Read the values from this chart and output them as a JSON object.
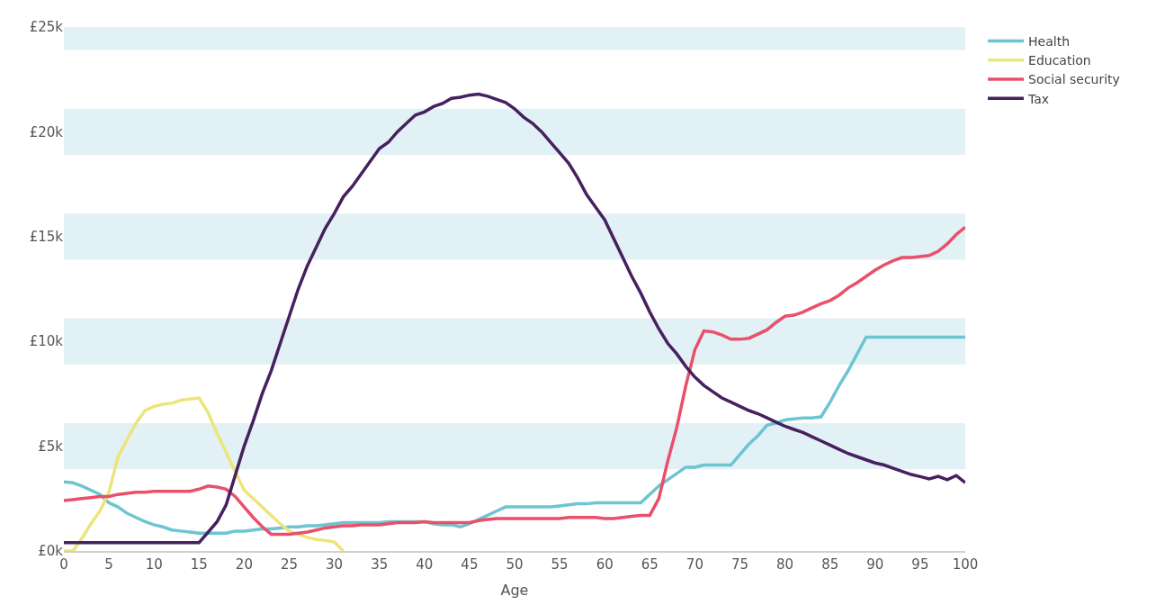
{
  "chart_data": {
    "type": "line",
    "xlabel": "Age",
    "x": [
      0,
      1,
      2,
      3,
      4,
      5,
      6,
      7,
      8,
      9,
      10,
      11,
      12,
      13,
      14,
      15,
      16,
      17,
      18,
      19,
      20,
      21,
      22,
      23,
      24,
      25,
      26,
      27,
      28,
      29,
      30,
      31,
      32,
      33,
      34,
      35,
      36,
      37,
      38,
      39,
      40,
      41,
      42,
      43,
      44,
      45,
      46,
      47,
      48,
      49,
      50,
      51,
      52,
      53,
      54,
      55,
      56,
      57,
      58,
      59,
      60,
      61,
      62,
      63,
      64,
      65,
      66,
      67,
      68,
      69,
      70,
      71,
      72,
      73,
      74,
      75,
      76,
      77,
      78,
      79,
      80,
      81,
      82,
      83,
      84,
      85,
      86,
      87,
      88,
      89,
      90,
      91,
      92,
      93,
      94,
      95,
      96,
      97,
      98,
      99,
      100
    ],
    "series": [
      {
        "name": "Health",
        "color": "#6cc5d1",
        "values": [
          3.3,
          3.25,
          3.1,
          2.9,
          2.7,
          2.3,
          2.1,
          1.8,
          1.6,
          1.4,
          1.25,
          1.15,
          1.0,
          0.95,
          0.9,
          0.85,
          0.85,
          0.85,
          0.85,
          0.95,
          0.95,
          1.0,
          1.05,
          1.05,
          1.1,
          1.15,
          1.15,
          1.2,
          1.2,
          1.25,
          1.3,
          1.35,
          1.35,
          1.35,
          1.35,
          1.35,
          1.4,
          1.4,
          1.4,
          1.4,
          1.4,
          1.3,
          1.25,
          1.25,
          1.15,
          1.3,
          1.5,
          1.7,
          1.9,
          2.1,
          2.1,
          2.1,
          2.1,
          2.1,
          2.1,
          2.15,
          2.2,
          2.25,
          2.25,
          2.3,
          2.3,
          2.3,
          2.3,
          2.3,
          2.3,
          2.7,
          3.1,
          3.4,
          3.7,
          4.0,
          4.0,
          4.1,
          4.1,
          4.1,
          4.1,
          4.6,
          5.1,
          5.5,
          6.0,
          6.1,
          6.25,
          6.3,
          6.35,
          6.35,
          6.4,
          7.1,
          7.9,
          8.6,
          9.4,
          10.2,
          10.2,
          10.2,
          10.2,
          10.2,
          10.2,
          10.2,
          10.2,
          10.2,
          10.2,
          10.2,
          10.2
        ]
      },
      {
        "name": "Education",
        "color": "#ede57a",
        "values": [
          0,
          0,
          0.6,
          1.3,
          1.9,
          2.8,
          4.5,
          5.3,
          6.1,
          6.7,
          6.9,
          7.0,
          7.05,
          7.2,
          7.25,
          7.3,
          6.6,
          5.6,
          4.7,
          3.8,
          2.9,
          2.5,
          2.1,
          1.7,
          1.3,
          0.95,
          0.8,
          0.65,
          0.55,
          0.5,
          0.43,
          0,
          null,
          null,
          null,
          null,
          null,
          null,
          null,
          null,
          null,
          null,
          null,
          null,
          null,
          null,
          null,
          null,
          null,
          null,
          null,
          null,
          null,
          null,
          null,
          null,
          null,
          null,
          null,
          null,
          null,
          null,
          null,
          null,
          null,
          null,
          null,
          null,
          null,
          null,
          null,
          null,
          null,
          null,
          null,
          null,
          null,
          null,
          null,
          null,
          null,
          null,
          null,
          null,
          null,
          null,
          null,
          null,
          null,
          null,
          null,
          null,
          null,
          null,
          null,
          null,
          null,
          null,
          null,
          null,
          null
        ]
      },
      {
        "name": "Social security",
        "color": "#e9506a",
        "values": [
          2.4,
          2.45,
          2.5,
          2.55,
          2.6,
          2.6,
          2.7,
          2.75,
          2.8,
          2.8,
          2.85,
          2.85,
          2.85,
          2.85,
          2.85,
          2.95,
          3.1,
          3.05,
          2.95,
          2.6,
          2.1,
          1.6,
          1.16,
          0.8,
          0.8,
          0.8,
          0.85,
          0.9,
          1.0,
          1.1,
          1.15,
          1.2,
          1.2,
          1.25,
          1.25,
          1.25,
          1.3,
          1.35,
          1.35,
          1.35,
          1.4,
          1.35,
          1.35,
          1.35,
          1.35,
          1.35,
          1.45,
          1.5,
          1.55,
          1.55,
          1.55,
          1.55,
          1.55,
          1.55,
          1.55,
          1.55,
          1.6,
          1.6,
          1.6,
          1.6,
          1.55,
          1.55,
          1.6,
          1.65,
          1.7,
          1.7,
          2.5,
          4.3,
          5.9,
          7.9,
          9.6,
          10.5,
          10.45,
          10.3,
          10.1,
          10.1,
          10.15,
          10.35,
          10.55,
          10.9,
          11.2,
          11.25,
          11.4,
          11.6,
          11.8,
          11.95,
          12.2,
          12.55,
          12.8,
          13.1,
          13.4,
          13.65,
          13.85,
          14.0,
          14.0,
          14.05,
          14.1,
          14.3,
          14.65,
          15.1,
          15.45
        ]
      },
      {
        "name": "Tax",
        "color": "#46205f",
        "values": [
          0.4,
          0.4,
          0.4,
          0.4,
          0.4,
          0.4,
          0.4,
          0.4,
          0.4,
          0.4,
          0.4,
          0.4,
          0.4,
          0.4,
          0.4,
          0.4,
          0.9,
          1.4,
          2.2,
          3.6,
          5.0,
          6.2,
          7.5,
          8.6,
          9.9,
          11.2,
          12.5,
          13.6,
          14.5,
          15.4,
          16.1,
          16.9,
          17.4,
          18.0,
          18.6,
          19.2,
          19.5,
          20.0,
          20.4,
          20.8,
          20.95,
          21.2,
          21.35,
          21.6,
          21.65,
          21.75,
          21.8,
          21.7,
          21.55,
          21.4,
          21.1,
          20.7,
          20.4,
          20.0,
          19.5,
          19.0,
          18.5,
          17.8,
          17.0,
          16.4,
          15.8,
          14.9,
          14.0,
          13.1,
          12.3,
          11.4,
          10.6,
          9.9,
          9.4,
          8.8,
          8.3,
          7.9,
          7.6,
          7.3,
          7.1,
          6.9,
          6.7,
          6.55,
          6.35,
          6.15,
          5.95,
          5.8,
          5.65,
          5.45,
          5.25,
          5.05,
          4.85,
          4.65,
          4.5,
          4.35,
          4.2,
          4.1,
          3.95,
          3.8,
          3.65,
          3.55,
          3.44,
          3.56,
          3.4,
          3.6,
          3.26
        ]
      }
    ],
    "xlim": [
      0,
      100
    ],
    "xticks": [
      0,
      5,
      10,
      15,
      20,
      25,
      30,
      35,
      40,
      45,
      50,
      55,
      60,
      65,
      70,
      75,
      80,
      85,
      90,
      95,
      100
    ],
    "ylim": [
      0,
      25
    ],
    "yticks": [
      {
        "value": 0,
        "label": "£0k"
      },
      {
        "value": 5,
        "label": "£5k"
      },
      {
        "value": 10,
        "label": "£10k"
      },
      {
        "value": 15,
        "label": "£15k"
      },
      {
        "value": 20,
        "label": "£20k"
      },
      {
        "value": 25,
        "label": "£25k"
      }
    ],
    "bands": [
      {
        "axis": "y",
        "from": 3.9,
        "to": 6.1,
        "color": "#e2f1f5"
      },
      {
        "axis": "y",
        "from": 8.9,
        "to": 11.1,
        "color": "#e2f1f5"
      },
      {
        "axis": "y",
        "from": 13.9,
        "to": 16.1,
        "color": "#e2f1f5"
      },
      {
        "axis": "y",
        "from": 18.9,
        "to": 21.1,
        "color": "#e2f1f5"
      },
      {
        "axis": "y",
        "from": 23.9,
        "to": 25,
        "color": "#e2f1f5"
      }
    ],
    "grid": false,
    "legend": "top right",
    "marker": "none",
    "line_style": "solid"
  }
}
